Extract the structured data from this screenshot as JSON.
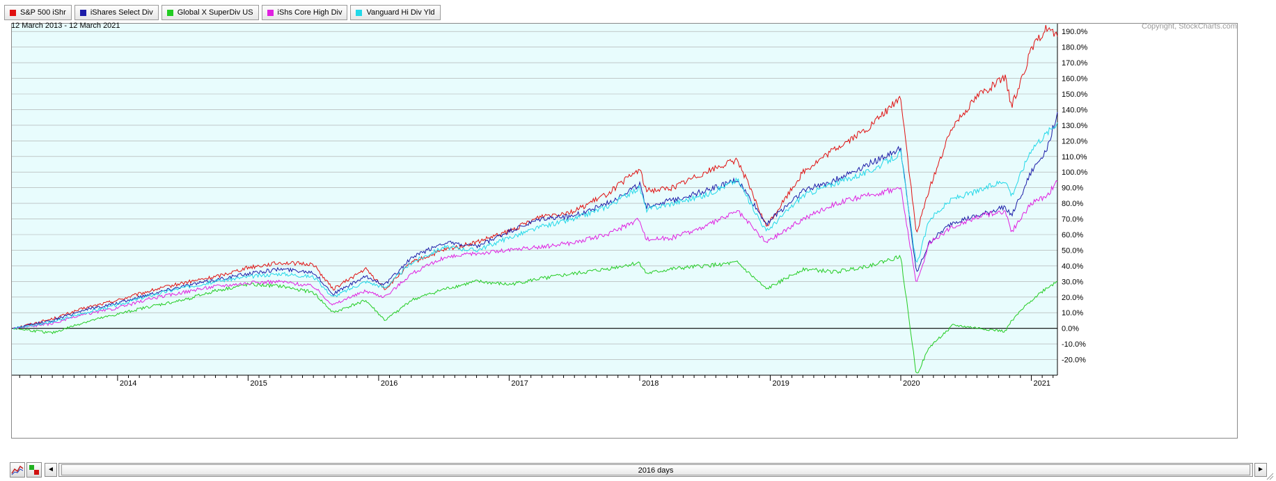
{
  "legend": [
    {
      "label": "S&P 500 iShr",
      "color": "#e01010"
    },
    {
      "label": "iShares Select Div",
      "color": "#1c1ca8"
    },
    {
      "label": "Global X SuperDiv US",
      "color": "#22cc22"
    },
    {
      "label": "iShs Core High Div",
      "color": "#e020e0"
    },
    {
      "label": "Vanguard Hi Div Yld",
      "color": "#22d8e8"
    }
  ],
  "header": {
    "date_range": "12 March 2013 - 12 March 2021",
    "copyright": "Copyright, StockCharts.com"
  },
  "footer": {
    "period_label": "2016 days",
    "left_arrow": "◄",
    "right_arrow": "►"
  },
  "chart_data": {
    "type": "line",
    "x": [
      2013.2,
      2013.5,
      2013.75,
      2014.0,
      2014.25,
      2014.5,
      2014.75,
      2015.0,
      2015.25,
      2015.5,
      2015.65,
      2015.9,
      2016.05,
      2016.25,
      2016.5,
      2016.75,
      2017.0,
      2017.25,
      2017.5,
      2017.75,
      2018.0,
      2018.05,
      2018.25,
      2018.5,
      2018.75,
      2018.97,
      2019.25,
      2019.5,
      2019.75,
      2020.0,
      2020.12,
      2020.22,
      2020.4,
      2020.6,
      2020.8,
      2020.85,
      2021.0,
      2021.12,
      2021.2
    ],
    "series": [
      {
        "name": "S&P 500 iShr",
        "color": "#e01010",
        "values": [
          0,
          6,
          13,
          18,
          24,
          29,
          33,
          39,
          42,
          41,
          25,
          38,
          25,
          42,
          50,
          55,
          62,
          72,
          75,
          86,
          102,
          88,
          90,
          100,
          108,
          65,
          100,
          115,
          128,
          148,
          60,
          90,
          130,
          150,
          160,
          142,
          178,
          193,
          186
        ]
      },
      {
        "name": "iShares Select Div",
        "color": "#1c1ca8",
        "values": [
          0,
          5,
          12,
          16,
          22,
          27,
          31,
          35,
          38,
          36,
          22,
          33,
          28,
          45,
          55,
          52,
          62,
          70,
          72,
          80,
          92,
          78,
          82,
          88,
          95,
          67,
          88,
          95,
          105,
          115,
          35,
          55,
          68,
          72,
          78,
          72,
          100,
          115,
          138
        ]
      },
      {
        "name": "Global X SuperDiv US",
        "color": "#22cc22",
        "values": [
          0,
          -3,
          4,
          9,
          14,
          18,
          24,
          28,
          27,
          23,
          10,
          18,
          5,
          18,
          25,
          30,
          28,
          32,
          35,
          38,
          42,
          35,
          38,
          40,
          42,
          25,
          38,
          36,
          40,
          46,
          -30,
          -12,
          2,
          0,
          -2,
          5,
          18,
          26,
          30
        ]
      },
      {
        "name": "iShs Core High Div",
        "color": "#e020e0",
        "values": [
          0,
          3,
          9,
          13,
          19,
          23,
          27,
          29,
          30,
          27,
          15,
          24,
          20,
          35,
          45,
          48,
          50,
          52,
          55,
          60,
          70,
          57,
          58,
          65,
          75,
          55,
          70,
          80,
          85,
          90,
          28,
          55,
          65,
          72,
          75,
          62,
          80,
          85,
          94
        ]
      },
      {
        "name": "Vanguard Hi Div Yld",
        "color": "#22d8e8",
        "values": [
          0,
          4,
          10,
          15,
          21,
          26,
          30,
          33,
          35,
          33,
          20,
          30,
          26,
          42,
          52,
          50,
          58,
          65,
          70,
          78,
          90,
          76,
          80,
          85,
          95,
          62,
          85,
          93,
          100,
          112,
          40,
          70,
          83,
          88,
          95,
          85,
          115,
          125,
          132
        ]
      }
    ],
    "xticks": [
      2014,
      2015,
      2016,
      2017,
      2018,
      2019,
      2020,
      2021
    ],
    "ylim": [
      -30,
      195
    ],
    "yticks": [
      -20,
      -10,
      0,
      10,
      20,
      30,
      40,
      50,
      60,
      70,
      80,
      90,
      100,
      110,
      120,
      130,
      140,
      150,
      160,
      170,
      180,
      190
    ],
    "ytick_suffix": "%",
    "grid": true,
    "legend_position": "top-left"
  }
}
